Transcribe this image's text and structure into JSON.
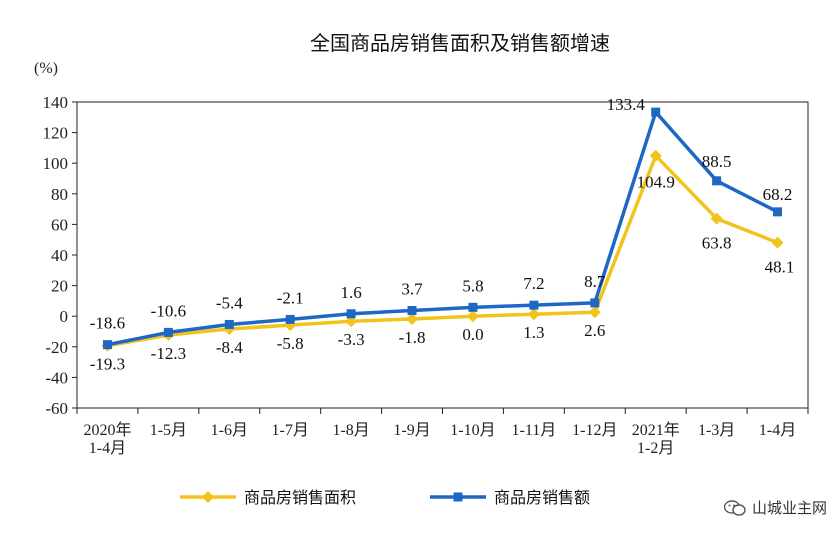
{
  "chart_data": {
    "type": "line",
    "title": "全国商品房销售面积及销售额增速",
    "ylabel": "(%)",
    "ylim": [
      -60,
      140
    ],
    "yticks": [
      140,
      120,
      100,
      80,
      60,
      40,
      20,
      0,
      -20,
      -40,
      -60
    ],
    "categories": [
      [
        "2020年",
        "1-4月"
      ],
      [
        "1-5月"
      ],
      [
        "1-6月"
      ],
      [
        "1-7月"
      ],
      [
        "1-8月"
      ],
      [
        "1-9月"
      ],
      [
        "1-10月"
      ],
      [
        "1-11月"
      ],
      [
        "1-12月"
      ],
      [
        "2021年",
        "1-2月"
      ],
      [
        "1-3月"
      ],
      [
        "1-4月"
      ]
    ],
    "series": [
      {
        "name": "商品房销售面积",
        "color": "#F2C31B",
        "marker": "diamond",
        "values": [
          -19.3,
          -12.3,
          -8.4,
          -5.8,
          -3.3,
          -1.8,
          0.0,
          1.3,
          2.6,
          104.9,
          63.8,
          48.1
        ],
        "labels": [
          "-19.3",
          "-12.3",
          "-8.4",
          "-5.8",
          "-3.3",
          "-1.8",
          "0.0",
          "1.3",
          "2.6",
          "104.9",
          "63.8",
          "48.1"
        ]
      },
      {
        "name": "商品房销售额",
        "color": "#1F67C4",
        "marker": "square",
        "values": [
          -18.6,
          -10.6,
          -5.4,
          -2.1,
          1.6,
          3.7,
          5.8,
          7.2,
          8.7,
          133.4,
          88.5,
          68.2
        ],
        "labels": [
          "-18.6",
          "-10.6",
          "-5.4",
          "-2.1",
          "1.6",
          "3.7",
          "5.8",
          "7.2",
          "8.7",
          "133.4",
          "88.5",
          "68.2"
        ]
      }
    ],
    "legend_position": "bottom",
    "grid": false
  },
  "watermark": {
    "icon": "wechat-icon",
    "text": "山城业主网"
  }
}
